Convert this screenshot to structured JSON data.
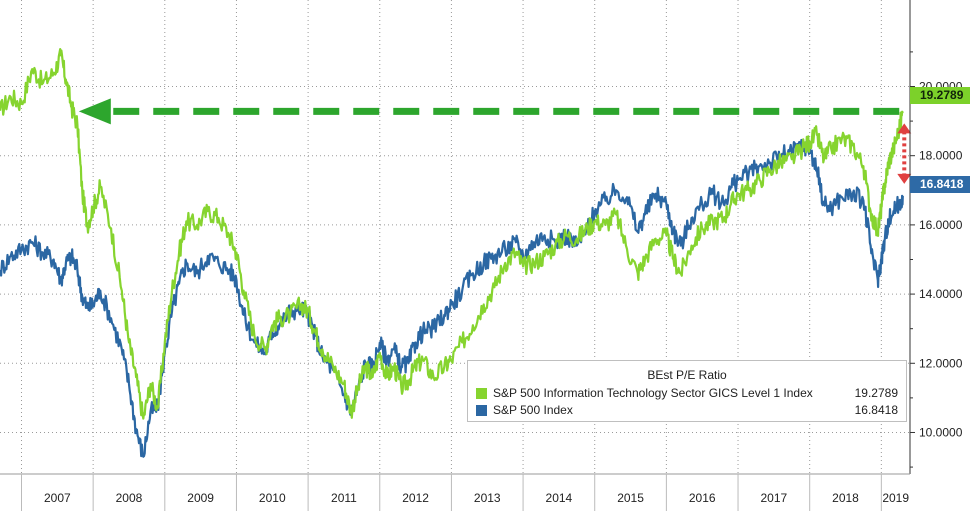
{
  "chart_data": {
    "type": "line",
    "title": "",
    "legend_title": "BEst P/E Ratio",
    "legend_placement": "bottom-right",
    "grid": true,
    "x_labels": [
      "2007",
      "2008",
      "2009",
      "2010",
      "2011",
      "2012",
      "2013",
      "2014",
      "2015",
      "2016",
      "2017",
      "2018",
      "2019"
    ],
    "x_start": 2006.7,
    "x_end": 2019.4,
    "y_axis_side": "right",
    "ylim": [
      8.8,
      22.5
    ],
    "y_ticks": [
      "20.0000",
      "18.0000",
      "16.0000",
      "14.0000",
      "12.0000",
      "10.0000"
    ],
    "y_tick_values": [
      20,
      18,
      16,
      14,
      12,
      10
    ],
    "series": [
      {
        "name": "S&P 500 Information Technology Sector GICS Level 1 Index",
        "last": "19.2789",
        "color": "#86d42f",
        "x": [
          2006.7,
          2006.85,
          2007.0,
          2007.15,
          2007.3,
          2007.45,
          2007.55,
          2007.62,
          2007.7,
          2007.78,
          2007.85,
          2007.92,
          2008.0,
          2008.1,
          2008.25,
          2008.4,
          2008.5,
          2008.6,
          2008.7,
          2008.8,
          2008.9,
          2009.0,
          2009.1,
          2009.2,
          2009.3,
          2009.45,
          2009.6,
          2009.75,
          2009.9,
          2010.0,
          2010.1,
          2010.25,
          2010.4,
          2010.5,
          2010.6,
          2010.75,
          2010.9,
          2011.0,
          2011.1,
          2011.2,
          2011.35,
          2011.5,
          2011.6,
          2011.7,
          2011.8,
          2011.9,
          2012.0,
          2012.1,
          2012.2,
          2012.3,
          2012.4,
          2012.5,
          2012.6,
          2012.75,
          2012.9,
          2013.0,
          2013.15,
          2013.3,
          2013.45,
          2013.6,
          2013.75,
          2013.9,
          2014.0,
          2014.15,
          2014.3,
          2014.45,
          2014.6,
          2014.75,
          2014.9,
          2015.0,
          2015.15,
          2015.3,
          2015.45,
          2015.6,
          2015.7,
          2015.85,
          2016.0,
          2016.1,
          2016.2,
          2016.35,
          2016.5,
          2016.65,
          2016.8,
          2016.9,
          2017.0,
          2017.15,
          2017.3,
          2017.45,
          2017.6,
          2017.75,
          2017.9,
          2018.0,
          2018.1,
          2018.2,
          2018.3,
          2018.45,
          2018.6,
          2018.75,
          2018.85,
          2018.95,
          2019.0,
          2019.05,
          2019.1,
          2019.17,
          2019.25,
          2019.3
        ],
        "y": [
          19.3,
          19.7,
          19.5,
          20.5,
          20.1,
          20.4,
          20.9,
          20.2,
          19.4,
          18.9,
          16.9,
          16.0,
          16.5,
          17.1,
          15.9,
          14.1,
          12.6,
          11.6,
          10.4,
          11.4,
          10.7,
          12.6,
          14.1,
          15.2,
          16.1,
          16.0,
          16.4,
          16.2,
          15.7,
          15.2,
          14.1,
          12.8,
          12.4,
          13.1,
          13.3,
          13.4,
          13.7,
          13.5,
          12.9,
          12.4,
          11.9,
          11.4,
          10.6,
          11.3,
          11.9,
          11.6,
          12.3,
          11.6,
          11.9,
          11.3,
          11.5,
          11.9,
          12.1,
          11.6,
          11.9,
          12.1,
          12.6,
          13.1,
          13.7,
          14.2,
          14.9,
          15.2,
          14.8,
          14.9,
          15.1,
          15.4,
          15.7,
          15.6,
          15.9,
          16.1,
          16.0,
          16.3,
          15.3,
          14.6,
          15.0,
          15.6,
          15.7,
          15.0,
          14.6,
          15.4,
          15.9,
          16.1,
          16.2,
          16.6,
          16.9,
          17.0,
          17.3,
          17.6,
          17.8,
          17.9,
          18.2,
          18.4,
          18.6,
          17.9,
          18.2,
          18.5,
          18.3,
          17.7,
          16.4,
          15.8,
          16.5,
          17.2,
          17.8,
          18.2,
          18.8,
          19.28
        ]
      },
      {
        "name": "S&P 500 Index",
        "last": "16.8418",
        "color": "#2b67a3",
        "x": [
          2006.7,
          2006.85,
          2007.0,
          2007.15,
          2007.3,
          2007.45,
          2007.55,
          2007.62,
          2007.7,
          2007.78,
          2007.85,
          2007.92,
          2008.0,
          2008.1,
          2008.25,
          2008.4,
          2008.5,
          2008.6,
          2008.7,
          2008.8,
          2008.9,
          2009.0,
          2009.1,
          2009.2,
          2009.3,
          2009.45,
          2009.6,
          2009.75,
          2009.9,
          2010.0,
          2010.1,
          2010.25,
          2010.4,
          2010.5,
          2010.6,
          2010.75,
          2010.9,
          2011.0,
          2011.1,
          2011.2,
          2011.35,
          2011.5,
          2011.6,
          2011.7,
          2011.8,
          2011.9,
          2012.0,
          2012.1,
          2012.2,
          2012.3,
          2012.4,
          2012.5,
          2012.6,
          2012.75,
          2012.9,
          2013.0,
          2013.15,
          2013.3,
          2013.45,
          2013.6,
          2013.75,
          2013.9,
          2014.0,
          2014.15,
          2014.3,
          2014.45,
          2014.6,
          2014.75,
          2014.9,
          2015.0,
          2015.15,
          2015.3,
          2015.45,
          2015.6,
          2015.7,
          2015.85,
          2016.0,
          2016.1,
          2016.2,
          2016.35,
          2016.5,
          2016.65,
          2016.8,
          2016.9,
          2017.0,
          2017.15,
          2017.3,
          2017.45,
          2017.6,
          2017.75,
          2017.9,
          2018.0,
          2018.1,
          2018.2,
          2018.3,
          2018.45,
          2018.6,
          2018.75,
          2018.85,
          2018.95,
          2019.0,
          2019.05,
          2019.1,
          2019.17,
          2019.25,
          2019.3
        ],
        "y": [
          14.7,
          15.1,
          15.3,
          15.5,
          15.2,
          15.0,
          14.4,
          14.9,
          15.1,
          14.7,
          13.9,
          13.6,
          13.7,
          14.1,
          13.3,
          12.4,
          11.4,
          10.1,
          9.3,
          10.6,
          10.7,
          12.3,
          13.5,
          14.3,
          14.9,
          14.6,
          15.1,
          14.9,
          14.7,
          14.4,
          13.4,
          12.6,
          12.3,
          12.9,
          13.1,
          13.5,
          13.6,
          13.4,
          12.8,
          12.2,
          11.8,
          11.1,
          10.6,
          11.3,
          12.0,
          11.9,
          12.6,
          12.1,
          12.4,
          11.9,
          12.0,
          12.6,
          12.9,
          13.0,
          13.4,
          13.7,
          14.1,
          14.6,
          14.9,
          15.1,
          15.3,
          15.5,
          15.1,
          15.5,
          15.7,
          15.5,
          15.7,
          15.4,
          15.9,
          16.4,
          16.7,
          17.0,
          16.8,
          15.8,
          16.3,
          16.9,
          16.6,
          15.8,
          15.4,
          16.2,
          16.6,
          16.9,
          16.6,
          17.1,
          17.3,
          17.5,
          17.7,
          17.8,
          18.0,
          18.1,
          18.3,
          18.2,
          17.6,
          16.6,
          16.5,
          16.8,
          16.9,
          16.7,
          15.4,
          14.4,
          15.0,
          15.6,
          16.1,
          16.4,
          16.6,
          16.84
        ]
      }
    ],
    "annotations": [
      {
        "type": "dashed-arrow",
        "color": "#2da62d",
        "description_value_from": 19.28,
        "x_from": 2019.25,
        "x_to": 2007.8
      },
      {
        "type": "double-arrow",
        "color": "#e04040",
        "y_from": 19.28,
        "y_to": 16.84,
        "x": 2019.32
      }
    ]
  }
}
